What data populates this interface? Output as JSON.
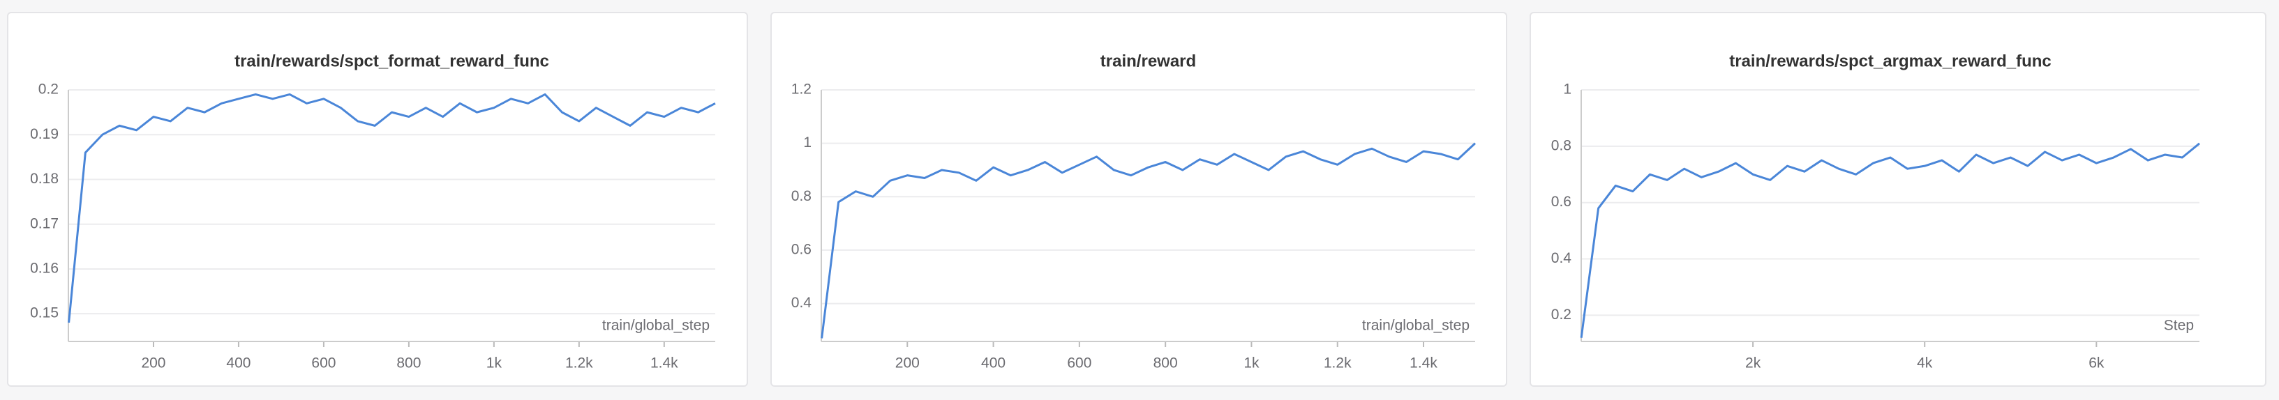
{
  "chart_data": [
    {
      "type": "line",
      "title": "train/rewards/spct_format_reward_func",
      "x_label": "train/global_step",
      "x": [
        1,
        40,
        80,
        120,
        160,
        200,
        240,
        280,
        320,
        360,
        400,
        440,
        480,
        520,
        560,
        600,
        640,
        680,
        720,
        760,
        800,
        840,
        880,
        920,
        960,
        1000,
        1040,
        1080,
        1120,
        1160,
        1200,
        1240,
        1280,
        1320,
        1360,
        1400,
        1440,
        1480,
        1520
      ],
      "values": [
        0.148,
        0.186,
        0.19,
        0.192,
        0.191,
        0.194,
        0.193,
        0.196,
        0.195,
        0.197,
        0.198,
        0.199,
        0.198,
        0.199,
        0.197,
        0.198,
        0.196,
        0.193,
        0.192,
        0.195,
        0.194,
        0.196,
        0.194,
        0.197,
        0.195,
        0.196,
        0.198,
        0.197,
        0.199,
        0.195,
        0.193,
        0.196,
        0.194,
        0.192,
        0.195,
        0.194,
        0.196,
        0.195,
        0.197
      ],
      "color": "#4a86d8",
      "xlim": [
        0,
        1520
      ],
      "ylim": [
        0.1438,
        0.2
      ],
      "xticks": [
        200,
        400,
        600,
        800,
        {
          "value": 1000,
          "label": "1k"
        },
        {
          "value": 1200,
          "label": "1.2k"
        },
        {
          "value": 1400,
          "label": "1.4k"
        }
      ],
      "yticks": [
        0.15,
        0.16,
        0.17,
        0.18,
        0.19,
        0.2
      ],
      "grid": true
    },
    {
      "type": "line",
      "title": "train/reward",
      "x_label": "train/global_step",
      "x": [
        1,
        40,
        80,
        120,
        160,
        200,
        240,
        280,
        320,
        360,
        400,
        440,
        480,
        520,
        560,
        600,
        640,
        680,
        720,
        760,
        800,
        840,
        880,
        920,
        960,
        1000,
        1040,
        1080,
        1120,
        1160,
        1200,
        1240,
        1280,
        1320,
        1360,
        1400,
        1440,
        1480,
        1520
      ],
      "values": [
        0.27,
        0.78,
        0.82,
        0.8,
        0.86,
        0.88,
        0.87,
        0.9,
        0.89,
        0.86,
        0.91,
        0.88,
        0.9,
        0.93,
        0.89,
        0.92,
        0.95,
        0.9,
        0.88,
        0.91,
        0.93,
        0.9,
        0.94,
        0.92,
        0.96,
        0.93,
        0.9,
        0.95,
        0.97,
        0.94,
        0.92,
        0.96,
        0.98,
        0.95,
        0.93,
        0.97,
        0.96,
        0.94,
        1.0
      ],
      "color": "#4a86d8",
      "xlim": [
        0,
        1520
      ],
      "ylim": [
        0.258,
        1.2
      ],
      "xticks": [
        200,
        400,
        600,
        800,
        {
          "value": 1000,
          "label": "1k"
        },
        {
          "value": 1200,
          "label": "1.2k"
        },
        {
          "value": 1400,
          "label": "1.4k"
        }
      ],
      "yticks": [
        0.4,
        0.6,
        0.8,
        1,
        1.2
      ],
      "grid": true
    },
    {
      "type": "line",
      "title": "train/rewards/spct_argmax_reward_func",
      "x_label": "Step",
      "x": [
        1,
        200,
        400,
        600,
        800,
        1000,
        1200,
        1400,
        1600,
        1800,
        2000,
        2200,
        2400,
        2600,
        2800,
        3000,
        3200,
        3400,
        3600,
        3800,
        4000,
        4200,
        4400,
        4600,
        4800,
        5000,
        5200,
        5400,
        5600,
        5800,
        6000,
        6200,
        6400,
        6600,
        6800,
        7000,
        7200
      ],
      "values": [
        0.12,
        0.58,
        0.66,
        0.64,
        0.7,
        0.68,
        0.72,
        0.69,
        0.71,
        0.74,
        0.7,
        0.68,
        0.73,
        0.71,
        0.75,
        0.72,
        0.7,
        0.74,
        0.76,
        0.72,
        0.73,
        0.75,
        0.71,
        0.77,
        0.74,
        0.76,
        0.73,
        0.78,
        0.75,
        0.77,
        0.74,
        0.76,
        0.79,
        0.75,
        0.77,
        0.76,
        0.81
      ],
      "color": "#4a86d8",
      "xlim": [
        0,
        7200
      ],
      "ylim": [
        0.107,
        1
      ],
      "xticks": [
        {
          "value": 2000,
          "label": "2k"
        },
        {
          "value": 4000,
          "label": "4k"
        },
        {
          "value": 6000,
          "label": "6k"
        }
      ],
      "yticks": [
        0.2,
        0.4,
        0.6,
        0.8,
        1
      ],
      "grid": true
    }
  ]
}
